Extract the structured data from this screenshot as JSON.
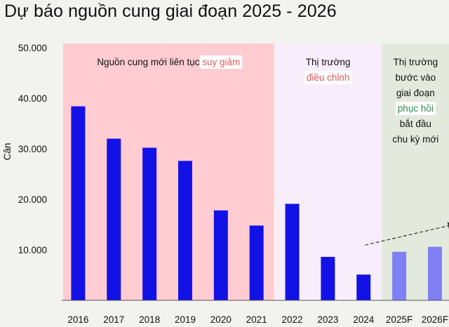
{
  "title": "Dự báo nguồn cung giai đoạn 2025 - 2026",
  "colors": {
    "background": "#f2f3ee",
    "zone_decline": "#ffccd2",
    "zone_adjust": "#f8eefb",
    "zone_recover": "#e3eadd",
    "bar_actual": "#1212e6",
    "bar_forecast": "#8080f5",
    "highlight_red": "#e05757",
    "highlight_green": "#2d8a4e"
  },
  "zones": [
    {
      "id": "decline",
      "lines": [
        [
          "Nguồn cung mới liên tục ",
          "suy giảm"
        ]
      ],
      "highlight_color": "red"
    },
    {
      "id": "adjust",
      "lines": [
        [
          "Thị trường",
          ""
        ],
        [
          "",
          "điều chỉnh"
        ]
      ],
      "highlight_color": "red"
    },
    {
      "id": "recover",
      "lines": [
        [
          "Thị trường",
          ""
        ],
        [
          "bước vào",
          ""
        ],
        [
          "giai đoạn",
          ""
        ],
        [
          "",
          "phục hồi"
        ],
        [
          "bắt đầu",
          ""
        ],
        [
          "chu kỳ mới",
          ""
        ]
      ],
      "highlight_color": "green"
    }
  ],
  "chart_data": {
    "type": "bar",
    "title": "Dự báo nguồn cung giai đoạn 2025 - 2026",
    "ylabel": "Căn",
    "xlabel": "",
    "ylim": [
      0,
      50000
    ],
    "yticks": [
      "10.000",
      "20.000",
      "30.000",
      "40.000",
      "50.000"
    ],
    "ytick_values": [
      10000,
      20000,
      30000,
      40000,
      50000
    ],
    "categories": [
      "2016",
      "2017",
      "2018",
      "2019",
      "2020",
      "2021",
      "2022",
      "2023",
      "2024",
      "2025F",
      "2026F"
    ],
    "values": [
      38400,
      32000,
      30200,
      27600,
      17800,
      14800,
      19100,
      8600,
      5100,
      9600,
      10600
    ],
    "forecast": [
      false,
      false,
      false,
      false,
      false,
      false,
      false,
      false,
      false,
      true,
      true
    ],
    "zone_spans": {
      "decline": [
        0,
        5
      ],
      "adjust": [
        6,
        8
      ],
      "recover": [
        9,
        10
      ]
    },
    "trend_arrow": {
      "from_category": "2024",
      "to_category": "2026F",
      "style": "dashed"
    },
    "grid": false,
    "legend": "none"
  }
}
